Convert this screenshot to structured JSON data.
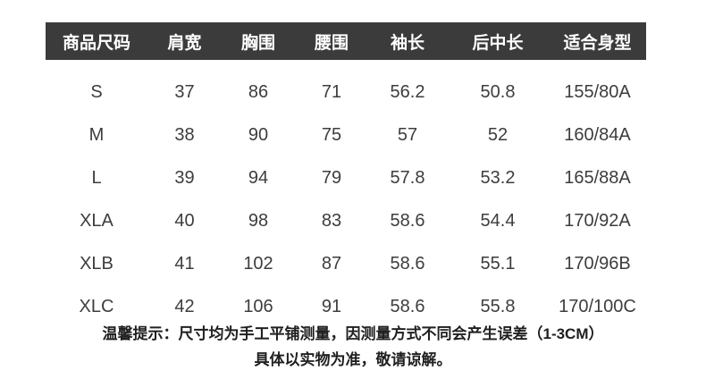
{
  "chart_data": {
    "type": "table",
    "columns": [
      "商品尺码",
      "肩宽",
      "胸围",
      "腰围",
      "袖长",
      "后中长",
      "适合身型"
    ],
    "rows": [
      [
        "S",
        "37",
        "86",
        "71",
        "56.2",
        "50.8",
        "155/80A"
      ],
      [
        "M",
        "38",
        "90",
        "75",
        "57",
        "52",
        "160/84A"
      ],
      [
        "L",
        "39",
        "94",
        "79",
        "57.8",
        "53.2",
        "165/88A"
      ],
      [
        "XLA",
        "40",
        "98",
        "83",
        "58.6",
        "54.4",
        "170/92A"
      ],
      [
        "XLB",
        "41",
        "102",
        "87",
        "58.6",
        "55.1",
        "170/96B"
      ],
      [
        "XLC",
        "42",
        "106",
        "91",
        "58.6",
        "55.8",
        "170/100C"
      ]
    ],
    "notes": [
      "温馨提示：尺寸均为手工平铺测量，因测量方式不同会产生误差（1-3CM）",
      "具体以实物为准，敬请谅解。"
    ],
    "layout_hints": {
      "header_style": "dark-bar",
      "grid": "off"
    }
  },
  "colors": {
    "header_bg": "#3b3b3b",
    "header_text": "#ffffff",
    "body_text": "#3d3d3d",
    "note_text": "#1f1f1f",
    "background": "#ffffff"
  }
}
